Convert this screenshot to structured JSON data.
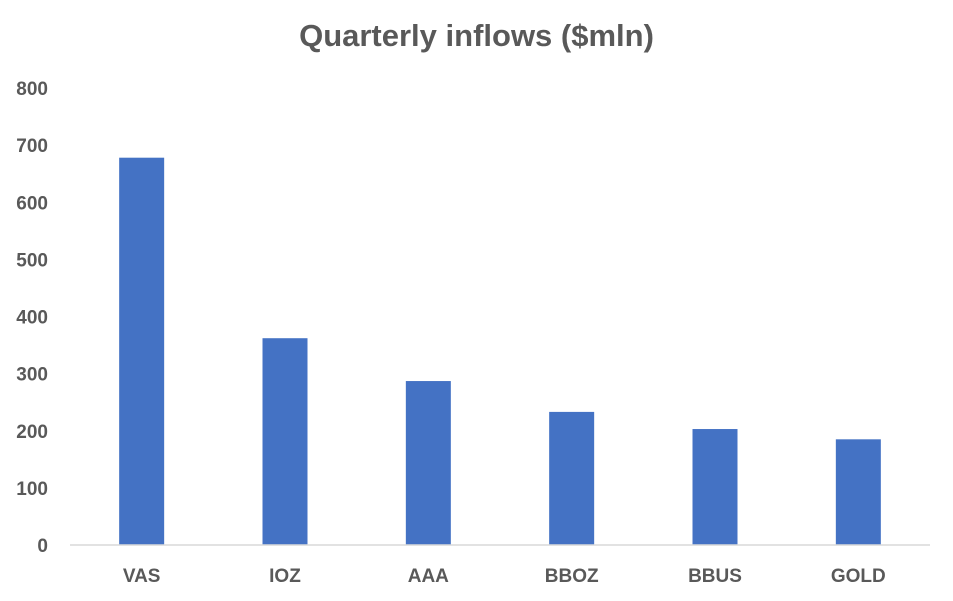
{
  "chart_data": {
    "type": "bar",
    "title": "Quarterly inflows ($mln)",
    "xlabel": "",
    "ylabel": "",
    "categories": [
      "VAS",
      "IOZ",
      "AAA",
      "BBOZ",
      "BBUS",
      "GOLD"
    ],
    "values": [
      678,
      362,
      287,
      233,
      203,
      185
    ],
    "ylim": [
      0,
      800
    ],
    "yticks": [
      "0",
      "100",
      "200",
      "300",
      "400",
      "500",
      "600",
      "700",
      "800"
    ],
    "grid": false,
    "legend": "none",
    "colors": {
      "bar": "#4472C4",
      "axis": "#D9D9D9",
      "text": "#595959"
    }
  }
}
